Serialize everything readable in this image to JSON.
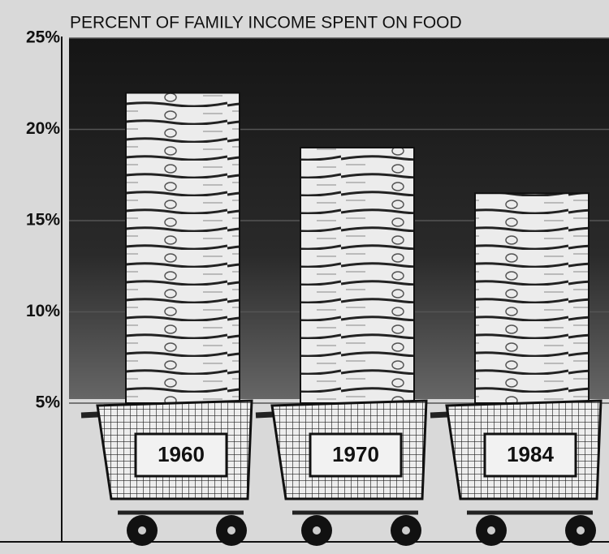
{
  "chart_data": {
    "type": "bar",
    "title": "PERCENT OF FAMILY INCOME SPENT ON FOOD",
    "categories": [
      "1960",
      "1970",
      "1984"
    ],
    "values": [
      22,
      19,
      16.5
    ],
    "color": "#e8e8e8",
    "ylim": [
      5,
      25
    ],
    "yticks": [
      {
        "value": 5,
        "label": "5%"
      },
      {
        "value": 10,
        "label": "10%"
      },
      {
        "value": 15,
        "label": "15%"
      },
      {
        "value": 20,
        "label": "20%"
      },
      {
        "value": 25,
        "label": "25%"
      }
    ],
    "grid": true
  }
}
